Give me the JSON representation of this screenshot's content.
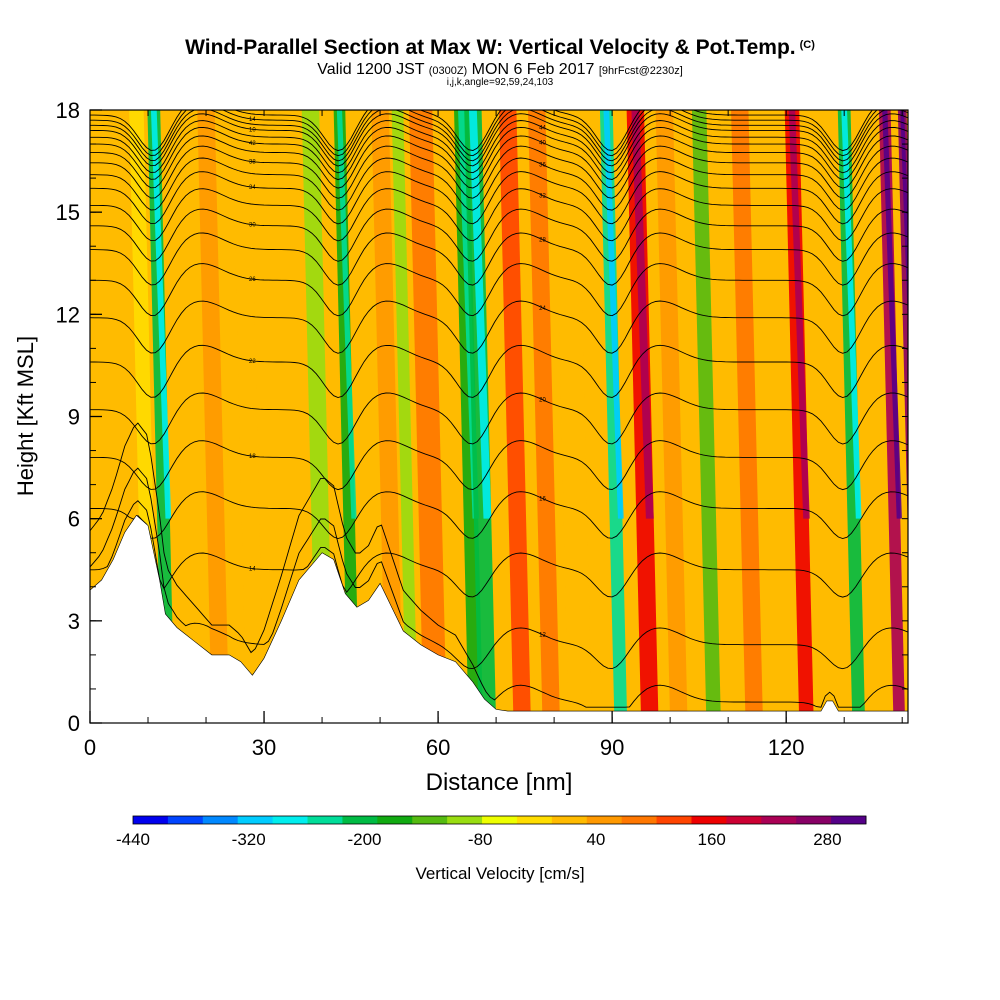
{
  "header": {
    "title": "Wind-Parallel Section at Max W: Vertical Velocity & Pot.Temp.",
    "title_unit": "(C)",
    "subtitle_a": "Valid 1200 JST",
    "subtitle_b": "(0300Z)",
    "subtitle_c": "MON 6 Feb 2017",
    "subtitle_d": "[9hrFcst@2230z]",
    "note": "i,j,k,angle=92,59,24,103"
  },
  "chart_data": {
    "type": "heatmap",
    "xlabel": "Distance [nm]",
    "ylabel": "Height [Kft MSL]",
    "xlim": [
      0,
      141
    ],
    "ylim": [
      0,
      18
    ],
    "x_ticks": [
      0,
      30,
      60,
      90,
      120
    ],
    "y_ticks": [
      0,
      3,
      6,
      9,
      12,
      15,
      18
    ],
    "colorbar": {
      "label": "Vertical Velocity [cm/s]",
      "ticks": [
        "-440",
        "-320",
        "-200",
        "-80",
        "40",
        "160",
        "280"
      ],
      "colors": [
        "#0000ee",
        "#0044ff",
        "#0088ff",
        "#00ccff",
        "#00eeee",
        "#00dd99",
        "#00bb44",
        "#11aa11",
        "#55bb11",
        "#99dd11",
        "#eeff00",
        "#ffdd00",
        "#ffbb00",
        "#ff9900",
        "#ff7700",
        "#ff4400",
        "#ee0000",
        "#cc0033",
        "#aa0055",
        "#880066",
        "#550088"
      ]
    },
    "velocity_bands": [
      {
        "x": 8,
        "w": 2.5,
        "value": -40
      },
      {
        "x": 11,
        "w": 2.2,
        "value": -200
      },
      {
        "x": 20,
        "w": 3,
        "value": 40
      },
      {
        "x": 26,
        "w": 3,
        "value": 20
      },
      {
        "x": 38,
        "w": 3,
        "value": -80
      },
      {
        "x": 43,
        "w": 2,
        "value": -160
      },
      {
        "x": 50,
        "w": 3,
        "value": 40
      },
      {
        "x": 53,
        "w": 2,
        "value": -100
      },
      {
        "x": 57,
        "w": 4,
        "value": 80
      },
      {
        "x": 64,
        "w": 2.5,
        "value": -160
      },
      {
        "x": 66,
        "w": 3,
        "value": -200
      },
      {
        "x": 72,
        "w": 3,
        "value": 140
      },
      {
        "x": 77,
        "w": 3,
        "value": 100
      },
      {
        "x": 82,
        "w": 4,
        "value": 0
      },
      {
        "x": 89,
        "w": 2.2,
        "value": -260
      },
      {
        "x": 94,
        "w": 3,
        "value": 160
      },
      {
        "x": 99,
        "w": 3,
        "value": 60
      },
      {
        "x": 105,
        "w": 2.5,
        "value": -120
      },
      {
        "x": 112,
        "w": 3,
        "value": 80
      },
      {
        "x": 121,
        "w": 2.5,
        "value": 180
      },
      {
        "x": 130,
        "w": 2.2,
        "value": -200
      },
      {
        "x": 137,
        "w": 2,
        "value": 260
      },
      {
        "x": 140,
        "w": 1.5,
        "value": 300
      }
    ],
    "terrain": [
      [
        0,
        3.9
      ],
      [
        2,
        4.2
      ],
      [
        4,
        4.8
      ],
      [
        6,
        5.6
      ],
      [
        8,
        6.1
      ],
      [
        10,
        5.8
      ],
      [
        12,
        4.2
      ],
      [
        13,
        3.2
      ],
      [
        15,
        2.8
      ],
      [
        18,
        2.4
      ],
      [
        21,
        2.0
      ],
      [
        24,
        2.0
      ],
      [
        26,
        1.8
      ],
      [
        28,
        1.4
      ],
      [
        30,
        1.9
      ],
      [
        33,
        3.0
      ],
      [
        36,
        4.2
      ],
      [
        40,
        5.0
      ],
      [
        42,
        4.8
      ],
      [
        44,
        3.8
      ],
      [
        46,
        3.4
      ],
      [
        48,
        3.6
      ],
      [
        50,
        4.1
      ],
      [
        52,
        3.4
      ],
      [
        54,
        2.7
      ],
      [
        57,
        2.3
      ],
      [
        60,
        2.0
      ],
      [
        63,
        1.8
      ],
      [
        66,
        1.2
      ],
      [
        68,
        0.7
      ],
      [
        70,
        0.4
      ],
      [
        72,
        0.35
      ],
      [
        126,
        0.35
      ],
      [
        127,
        0.65
      ],
      [
        128,
        0.65
      ],
      [
        129,
        0.35
      ],
      [
        141,
        0.35
      ]
    ],
    "theta_contours": {
      "surface_values": [
        0.5,
        2.3,
        4.5,
        6.3,
        7.8,
        9.2,
        10.6,
        11.9,
        13.0,
        13.9,
        14.6,
        15.2,
        15.7,
        16.1,
        16.45,
        16.75,
        17.0,
        17.2,
        17.4,
        17.55,
        17.7,
        17.85
      ],
      "wave_centers": [
        11,
        43,
        66,
        90,
        130
      ],
      "labels": [
        "10",
        "12",
        "14",
        "16",
        "18",
        "20",
        "22",
        "24",
        "26",
        "28",
        "30",
        "32",
        "34",
        "36",
        "38",
        "40",
        "42",
        "44"
      ]
    }
  },
  "colors": {
    "background": "#ffffff",
    "axis": "#000000",
    "terrain_fill": "#ffffff"
  }
}
